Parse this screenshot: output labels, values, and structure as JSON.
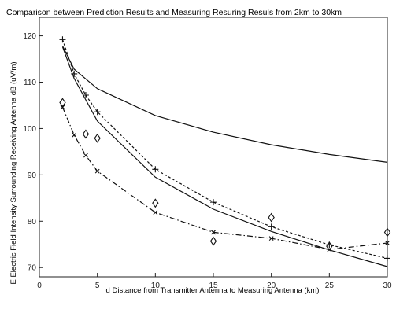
{
  "chart_data": {
    "type": "line",
    "title": "Comparison between Prediction Results and Measuring Resuring Resuls from 2km to 30km",
    "xlabel": "d Distance from Transmitter Antenna to Measuring Antenna (km)",
    "ylabel": "E Electric Field Intensity Surrounding Receiving Antenna dB (uV/m)",
    "xlim": [
      0,
      30
    ],
    "ylim": [
      68,
      124
    ],
    "xticks": [
      0,
      5,
      10,
      15,
      20,
      25,
      30
    ],
    "yticks": [
      70,
      80,
      90,
      100,
      110,
      120
    ],
    "grid": false,
    "series": [
      {
        "style": "solid",
        "marker": "none",
        "x": [
          2,
          3,
          5,
          10,
          15,
          20,
          25,
          30
        ],
        "y": [
          117.8,
          112.8,
          108.6,
          102.8,
          99.2,
          96.5,
          94.4,
          92.7
        ]
      },
      {
        "style": "solid",
        "marker": "none",
        "x": [
          2,
          3,
          4,
          5,
          10,
          15,
          20,
          25,
          30
        ],
        "y": [
          117.6,
          110.8,
          106.2,
          101.6,
          89.5,
          82.6,
          77.8,
          73.8,
          70.2
        ]
      },
      {
        "style": "dashed",
        "marker": "plus",
        "x": [
          2,
          3,
          4,
          5,
          10,
          15,
          20,
          25,
          30
        ],
        "y": [
          119.2,
          111.8,
          107.2,
          103.6,
          91.2,
          84.1,
          78.8,
          74.9,
          72.0
        ]
      },
      {
        "style": "dashdot",
        "marker": "x",
        "x": [
          2,
          3,
          4,
          5,
          10,
          15,
          20,
          25,
          30
        ],
        "y": [
          104.6,
          98.6,
          94.2,
          90.8,
          81.9,
          77.6,
          76.3,
          73.9,
          75.3
        ]
      },
      {
        "style": "none",
        "marker": "diamond",
        "x": [
          2,
          4,
          5,
          10,
          15,
          20,
          25,
          30
        ],
        "y": [
          105.6,
          98.8,
          97.9,
          83.9,
          75.7,
          80.8,
          74.6,
          77.6
        ]
      }
    ]
  }
}
